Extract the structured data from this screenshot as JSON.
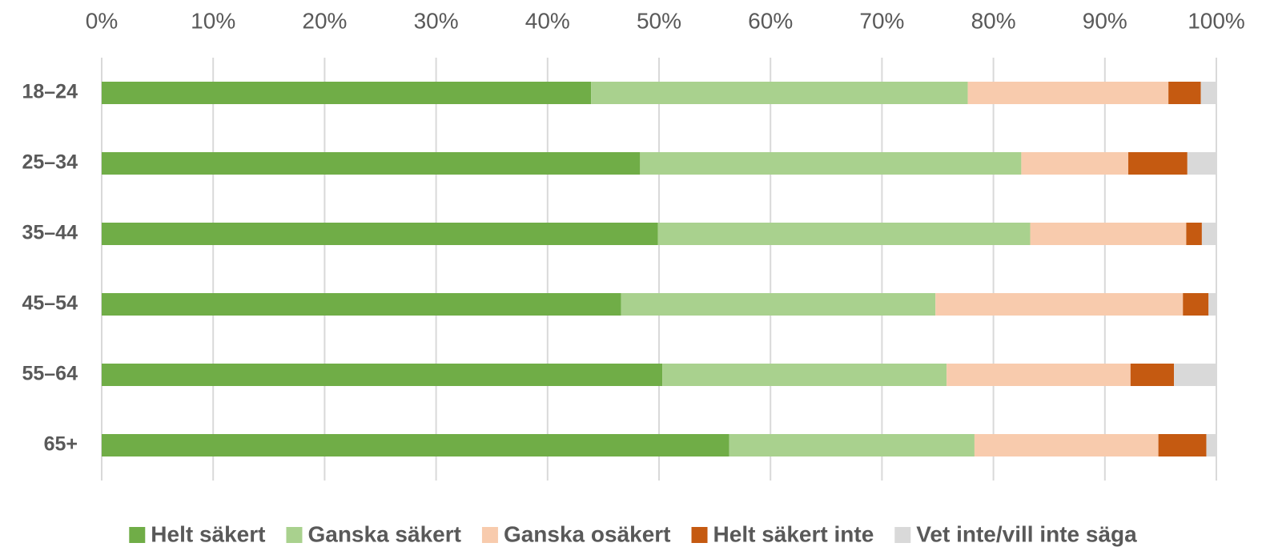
{
  "chart_data": {
    "type": "stacked_hbar",
    "categories": [
      "18–24",
      "25–34",
      "35–44",
      "45–54",
      "55–64",
      "65+"
    ],
    "series": [
      {
        "name": "Helt säkert",
        "color": "#70ad47",
        "values": [
          43.9,
          48.3,
          49.9,
          46.6,
          50.3,
          56.3
        ]
      },
      {
        "name": "Ganska säkert",
        "color": "#a9d18e",
        "values": [
          33.8,
          34.2,
          33.4,
          28.2,
          25.5,
          22.0
        ]
      },
      {
        "name": "Ganska osäkert",
        "color": "#f8cbad",
        "values": [
          18.0,
          9.6,
          14.0,
          22.2,
          16.5,
          16.5
        ]
      },
      {
        "name": "Helt säkert inte",
        "color": "#c55a11",
        "values": [
          2.9,
          5.3,
          1.4,
          2.3,
          3.9,
          4.3
        ]
      },
      {
        "name": "Vet inte/vill inte säga",
        "color": "#d9d9d9",
        "values": [
          1.4,
          2.6,
          1.3,
          0.7,
          3.8,
          0.9
        ]
      }
    ],
    "xlim": [
      0,
      100
    ],
    "xticks": [
      {
        "value": 0,
        "label": "0%"
      },
      {
        "value": 10,
        "label": "10%"
      },
      {
        "value": 20,
        "label": "20%"
      },
      {
        "value": 30,
        "label": "30%"
      },
      {
        "value": 40,
        "label": "40%"
      },
      {
        "value": 50,
        "label": "50%"
      },
      {
        "value": 60,
        "label": "60%"
      },
      {
        "value": 70,
        "label": "70%"
      },
      {
        "value": 80,
        "label": "80%"
      },
      {
        "value": 90,
        "label": "90%"
      },
      {
        "value": 100,
        "label": "100%"
      }
    ],
    "grid": true,
    "legend": "bottom"
  }
}
